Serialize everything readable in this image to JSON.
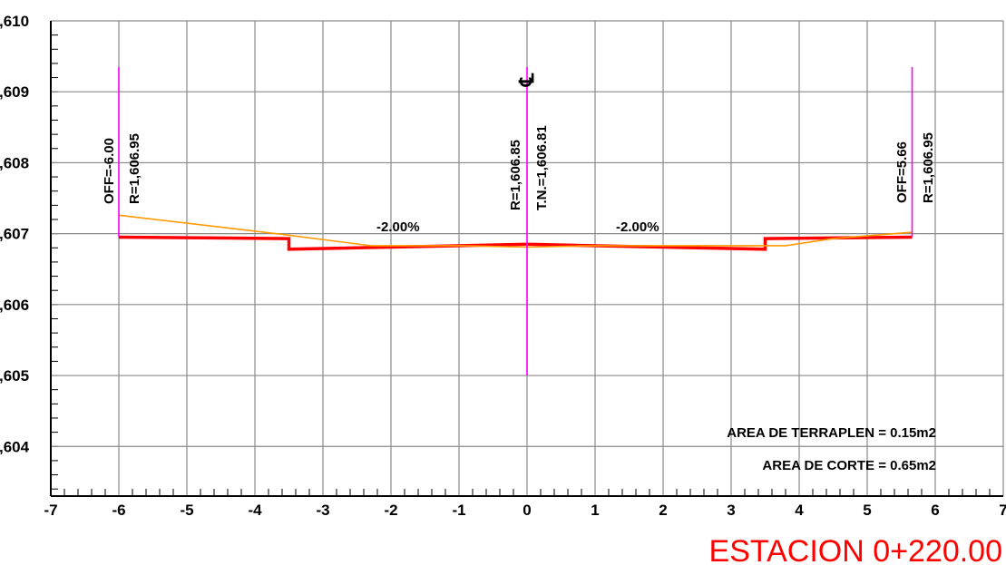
{
  "chart_data": {
    "type": "line",
    "title": "ESTACION 0+220.00",
    "xlim": [
      -7,
      7
    ],
    "ylim": [
      1603.3,
      1610
    ],
    "x_ticks": [
      -7,
      -6,
      -5,
      -4,
      -3,
      -2,
      -1,
      0,
      1,
      2,
      3,
      4,
      5,
      6,
      7
    ],
    "x_tick_labels": [
      "-7",
      "-6",
      "-5",
      "-4",
      "-3",
      "-2",
      "-1",
      "0",
      "1",
      "2",
      "3",
      "4",
      "5",
      "6",
      "7"
    ],
    "y_ticks": [
      1610,
      1609,
      1608,
      1607,
      1606,
      1605,
      1604
    ],
    "y_tick_labels": [
      ",610",
      ",609",
      ",608",
      ",607",
      ",606",
      ",605",
      ",604"
    ],
    "grid": true,
    "series": [
      {
        "color": "#ff0000",
        "x": [
          -6.0,
          -3.5,
          -3.5,
          -0.05,
          0.05,
          3.5,
          3.5,
          5.66
        ],
        "y": [
          1606.95,
          1606.93,
          1606.78,
          1606.85,
          1606.85,
          1606.78,
          1606.93,
          1606.95
        ]
      },
      {
        "color": "#ff9900",
        "x": [
          -6.0,
          -3.6,
          -2.3,
          -1.0,
          0.0,
          1.0,
          2.0,
          3.0,
          3.8,
          4.5,
          5.66
        ],
        "y": [
          1607.26,
          1606.99,
          1606.83,
          1606.83,
          1606.81,
          1606.83,
          1606.83,
          1606.83,
          1606.83,
          1606.93,
          1607.02
        ]
      }
    ],
    "vertical_lines": [
      {
        "x": -6.0,
        "y_from": 1606.95,
        "y_to": 1609.35,
        "color": "#ff00ff"
      },
      {
        "x": 0.0,
        "y_from": 1605.0,
        "y_to": 1609.35,
        "color": "#ff00ff"
      },
      {
        "x": 5.66,
        "y_from": 1606.95,
        "y_to": 1609.35,
        "color": "#ff00ff"
      }
    ],
    "annotations": {
      "left_off": "OFF=-6.00",
      "left_elev": "R=1,606.95",
      "center_r": "R=1,606.85",
      "center_tn": "T.N.=1,606.81",
      "right_off": "OFF=5.66",
      "right_elev": "R=1,606.95",
      "slope_left": "-2.00%",
      "slope_right": "-2.00%",
      "centerline_symbol": "℄"
    },
    "area_terraplen": "AREA DE TERRAPLEN = 0.15m2",
    "area_corte": "AREA DE CORTE = 0.65m2"
  }
}
